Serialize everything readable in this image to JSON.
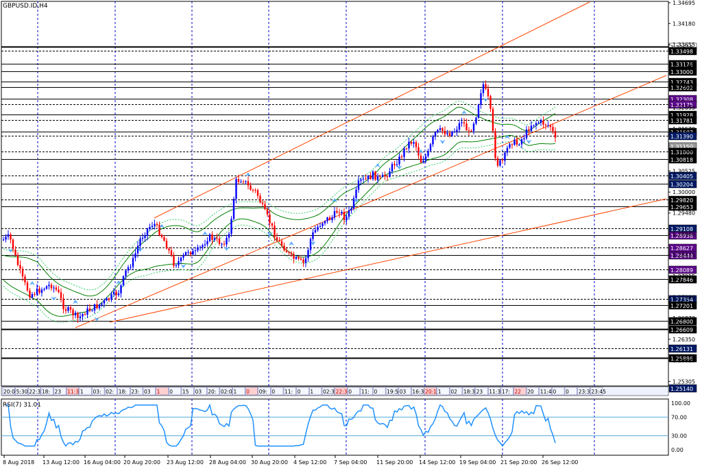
{
  "chart_data": {
    "type": "candlestick",
    "title": "GBPUSD.ID,H4",
    "price_axis": {
      "ylim": [
        1.2514,
        1.34695
      ],
      "tick_labels": [
        "1.34695",
        "1.34180",
        "1.33655",
        "1.33135",
        "1.32610",
        "1.32095",
        "1.31570",
        "1.31050",
        "1.30525",
        "1.30000",
        "1.29480",
        "1.28960",
        "1.28435",
        "1.27915",
        "1.27390",
        "1.26870",
        "1.26350",
        "1.25825",
        "1.25305"
      ]
    },
    "horizontal_levels": [
      {
        "label": "1.33615",
        "style": "solid-thick",
        "box": "white"
      },
      {
        "label": "1.33498",
        "style": "dashed",
        "box": "black"
      },
      {
        "label": "1.33176",
        "style": "solid",
        "box": "black"
      },
      {
        "label": "1.33000",
        "style": "solid",
        "box": "black"
      },
      {
        "label": "1.32743",
        "style": "solid",
        "box": "black"
      },
      {
        "label": "1.32602",
        "style": "solid",
        "box": "black"
      },
      {
        "label": "1.32308",
        "style": "solid",
        "box": "purple"
      },
      {
        "label": "1.32175",
        "style": "dashed",
        "box": "purple"
      },
      {
        "label": "1.31928",
        "style": "solid",
        "box": "black"
      },
      {
        "label": "1.31781",
        "style": "dashed",
        "box": "black"
      },
      {
        "label": "1.31507",
        "style": "solid",
        "box": "black"
      },
      {
        "label": "1.31390",
        "style": "dashed",
        "box": "navy"
      },
      {
        "label": "1.31150",
        "style": "none",
        "box": "grey"
      },
      {
        "label": "1.31000",
        "style": "dashed",
        "box": "black"
      },
      {
        "label": "1.30818",
        "style": "solid",
        "box": "black"
      },
      {
        "label": "1.30405",
        "style": "dashed",
        "box": "navy"
      },
      {
        "label": "1.30204",
        "style": "solid",
        "box": "navy"
      },
      {
        "label": "1.29820",
        "style": "dashed",
        "box": "black"
      },
      {
        "label": "1.29653",
        "style": "solid",
        "box": "black"
      },
      {
        "label": "1.29108",
        "style": "dashed",
        "box": "navy"
      },
      {
        "label": "1.28938",
        "style": "solid",
        "box": "purple"
      },
      {
        "label": "1.28627",
        "style": "dashed",
        "box": "purple"
      },
      {
        "label": "1.28444",
        "style": "solid",
        "box": "purple"
      },
      {
        "label": "1.28089",
        "style": "dashed",
        "box": "purple"
      },
      {
        "label": "1.27846",
        "style": "solid",
        "box": "black"
      },
      {
        "label": "1.27354",
        "style": "dashed",
        "box": "navy"
      },
      {
        "label": "1.27201",
        "style": "solid",
        "box": "black"
      },
      {
        "label": "1.26800",
        "style": "solid",
        "box": "black"
      },
      {
        "label": "1.26609",
        "style": "solid-thick",
        "box": "black"
      },
      {
        "label": "1.26131",
        "style": "dashed",
        "box": "navy"
      },
      {
        "label": "1.25886",
        "style": "solid-thick",
        "box": "black"
      },
      {
        "label": "1.25140",
        "style": "solid",
        "box": "navy"
      }
    ],
    "trendlines": [
      {
        "from": [
          160,
          470
        ],
        "to": [
          972,
          290
        ]
      },
      {
        "from": [
          110,
          478
        ],
        "to": [
          972,
          110
        ]
      },
      {
        "from": [
          225,
          318
        ],
        "to": [
          860,
          3
        ]
      }
    ],
    "time_axis": {
      "x_labels": [
        "8 Aug 2018",
        "13 Aug 12:00",
        "16 Aug 04:00",
        "20 Aug 20:00",
        "23 Aug 12:00",
        "28 Aug 04:00",
        "30 Aug 20:00",
        "4 Sep 12:00",
        "7 Sep 04:00",
        "11 Sep 20:00",
        "14 Sep 12:00",
        "19 Sep 04:00",
        "21 Sep 20:00",
        "26 Sep 12:00"
      ]
    },
    "session_strip": [
      "20:00",
      "5:30",
      "22:3",
      "18:",
      "23",
      "11:30",
      "1",
      "03:",
      "02:",
      "18:",
      "23:",
      "03",
      "1",
      "0",
      "15",
      "03",
      "20:",
      "02:01",
      "1",
      "0",
      "09:",
      "0",
      "11:",
      "0",
      "1",
      "02:3",
      "22:30",
      "0",
      "11:",
      "0",
      "19:55",
      "03",
      "16:30",
      "20:1",
      "1",
      "02",
      "18:3",
      "23",
      "11:30",
      "17:",
      "22",
      "20",
      "11:40",
      "0",
      "0",
      "23:3",
      "23:45"
    ],
    "rsi": {
      "label": "RSI(7) 31.01",
      "ylim": [
        0,
        100
      ],
      "levels": [
        70,
        30
      ],
      "tick_labels": [
        "100.00",
        "70.00",
        "30.00",
        "0.00"
      ]
    },
    "colors": {
      "bull": "#0000ff",
      "bear": "#ff0000",
      "trend": "#ff4500",
      "band": "#008000",
      "fractal": "#55aaff",
      "rsi": "#1e90ff"
    }
  }
}
